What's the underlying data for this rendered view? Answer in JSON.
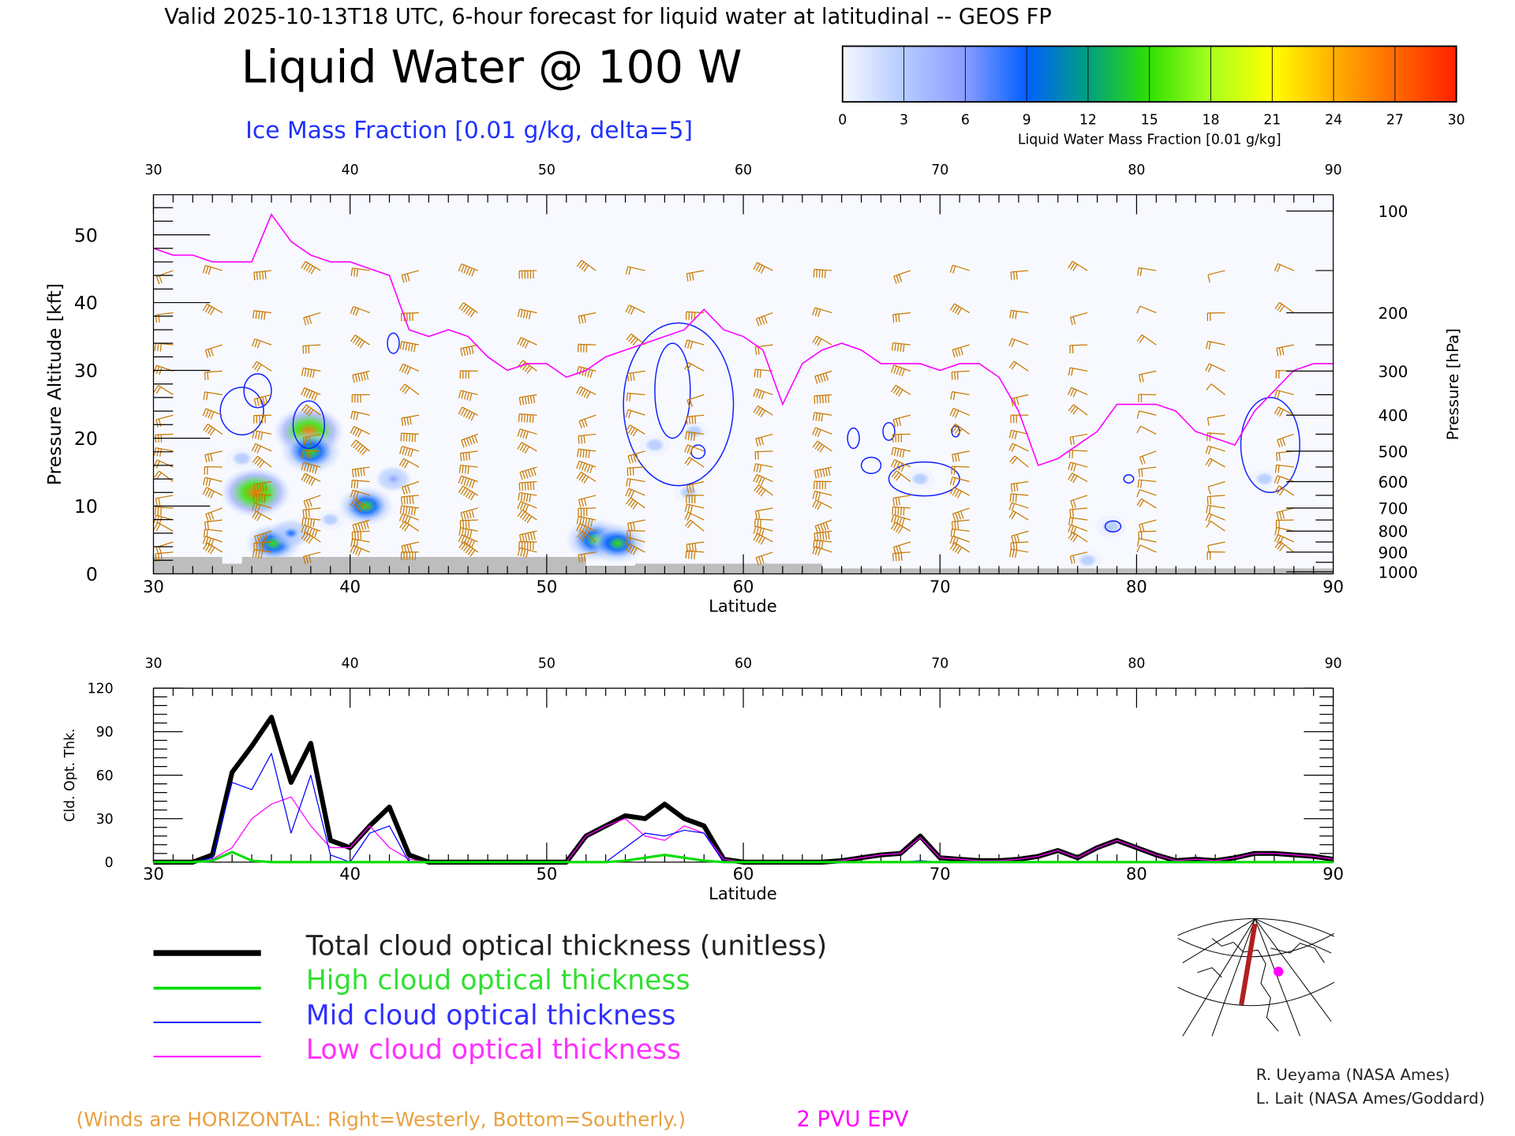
{
  "header": {
    "valid_line": "Valid 2025-10-13T18 UTC, 6-hour forecast for liquid water at latitudinal -- GEOS FP",
    "title": "Liquid Water @ 100 W",
    "ice_label": "Ice Mass Fraction [0.01 g/kg, delta=5]"
  },
  "colorbar": {
    "label": "Liquid Water Mass Fraction [0.01 g/kg]",
    "ticks": [
      "0",
      "3",
      "6",
      "9",
      "12",
      "15",
      "18",
      "21",
      "24",
      "27",
      "30"
    ],
    "colors": [
      "#f4f7ff",
      "#b4cbff",
      "#8a9cff",
      "#0060ff",
      "#00a080",
      "#30e000",
      "#a8ff20",
      "#ffff00",
      "#ffb000",
      "#ff6a00",
      "#ff2000"
    ]
  },
  "footer": {
    "winds_note": "(Winds are HORIZONTAL: Right=Westerly, Bottom=Southerly.)",
    "pv_label": "2 PVU EPV",
    "credit1": "R. Ueyama (NASA Ames)",
    "credit2": "L. Lait (NASA Ames/Goddard)"
  },
  "legend": [
    {
      "label": "Total cloud optical thickness (unitless)",
      "color": "#000000"
    },
    {
      "label": "High cloud optical thickness",
      "color": "#00dd00"
    },
    {
      "label": "Mid cloud optical thickness",
      "color": "#0000ff"
    },
    {
      "label": "Low cloud optical thickness",
      "color": "#ff00ff"
    }
  ],
  "chart_data": [
    {
      "type": "heatmap",
      "title": "Liquid Water @ 100 W",
      "xlabel": "Latitude",
      "ylabel": "Pressure Altitude [kft]",
      "ylabel_right": "Pressure [hPa]",
      "xlim": [
        30,
        90
      ],
      "ylim": [
        0,
        56
      ],
      "xticks": [
        "30",
        "40",
        "50",
        "60",
        "70",
        "80",
        "90"
      ],
      "yticks": [
        "0",
        "10",
        "20",
        "30",
        "40",
        "50"
      ],
      "pressure_ticks": [
        {
          "hPa": "100",
          "kft": 53.5
        },
        {
          "hPa": "200",
          "kft": 38.5
        },
        {
          "hPa": "300",
          "kft": 29.9
        },
        {
          "hPa": "400",
          "kft": 23.4
        },
        {
          "hPa": "500",
          "kft": 18.1
        },
        {
          "hPa": "600",
          "kft": 13.6
        },
        {
          "hPa": "700",
          "kft": 9.7
        },
        {
          "hPa": "800",
          "kft": 6.3
        },
        {
          "hPa": "900",
          "kft": 3.2
        },
        {
          "hPa": "1000",
          "kft": 0.3
        }
      ],
      "liquid_water_blobs": [
        {
          "lat": 35.2,
          "kft": 12,
          "value": 28
        },
        {
          "lat": 34.5,
          "kft": 17,
          "value": 4
        },
        {
          "lat": 36.1,
          "kft": 4.5,
          "value": 14
        },
        {
          "lat": 37,
          "kft": 6,
          "value": 8
        },
        {
          "lat": 37.9,
          "kft": 21,
          "value": 27
        },
        {
          "lat": 38,
          "kft": 18,
          "value": 16
        },
        {
          "lat": 40.8,
          "kft": 10,
          "value": 14
        },
        {
          "lat": 42.2,
          "kft": 14,
          "value": 6
        },
        {
          "lat": 39,
          "kft": 8,
          "value": 3
        },
        {
          "lat": 52.5,
          "kft": 5,
          "value": 16
        },
        {
          "lat": 53.6,
          "kft": 4.5,
          "value": 14
        },
        {
          "lat": 55.5,
          "kft": 19,
          "value": 4
        },
        {
          "lat": 57.2,
          "kft": 12,
          "value": 3
        },
        {
          "lat": 57.5,
          "kft": 21,
          "value": 3
        },
        {
          "lat": 69,
          "kft": 14,
          "value": 3
        },
        {
          "lat": 78.7,
          "kft": 7,
          "value": 4
        },
        {
          "lat": 77.5,
          "kft": 2,
          "value": 3
        },
        {
          "lat": 86.5,
          "kft": 14,
          "value": 3
        }
      ],
      "ice_contours": [
        {
          "lat": 34.5,
          "kft": 24,
          "rx": 1.1,
          "ry": 3.5
        },
        {
          "lat": 35.3,
          "kft": 27,
          "rx": 0.7,
          "ry": 2.5
        },
        {
          "lat": 37.9,
          "kft": 22,
          "rx": 0.8,
          "ry": 3.5
        },
        {
          "lat": 42.2,
          "kft": 34,
          "rx": 0.3,
          "ry": 1.5
        },
        {
          "lat": 56.7,
          "kft": 25,
          "rx": 2.8,
          "ry": 12
        },
        {
          "lat": 56.4,
          "kft": 27,
          "rx": 0.9,
          "ry": 7
        },
        {
          "lat": 57.7,
          "kft": 18,
          "rx": 0.35,
          "ry": 1
        },
        {
          "lat": 65.6,
          "kft": 20,
          "rx": 0.3,
          "ry": 1.5
        },
        {
          "lat": 66.5,
          "kft": 16,
          "rx": 0.5,
          "ry": 1.2
        },
        {
          "lat": 67.4,
          "kft": 21,
          "rx": 0.3,
          "ry": 1.3
        },
        {
          "lat": 69.2,
          "kft": 14,
          "rx": 1.8,
          "ry": 2.5
        },
        {
          "lat": 70.8,
          "kft": 21,
          "rx": 0.2,
          "ry": 0.8
        },
        {
          "lat": 79.6,
          "kft": 14,
          "rx": 0.25,
          "ry": 0.6
        },
        {
          "lat": 78.8,
          "kft": 7,
          "rx": 0.4,
          "ry": 0.8
        },
        {
          "lat": 86.8,
          "kft": 19,
          "rx": 1.5,
          "ry": 7
        }
      ],
      "epv_2pvu_kft": [
        48,
        47,
        47,
        46,
        46,
        46,
        53,
        49,
        47,
        46,
        46,
        45,
        44,
        36,
        35,
        36,
        35,
        32,
        30,
        31,
        31,
        29,
        30,
        32,
        33,
        34,
        35,
        36,
        39,
        36,
        35,
        33,
        25,
        31,
        33,
        34,
        33,
        31,
        31,
        31,
        30,
        31,
        31,
        29,
        24,
        16,
        17,
        19,
        21,
        25,
        25,
        25,
        24,
        21,
        20,
        19,
        24,
        27,
        30,
        31,
        31
      ],
      "terrain_kft": [
        [
          30,
          2.5
        ],
        [
          33.5,
          2.5
        ],
        [
          33.5,
          1.5
        ],
        [
          34.5,
          1.5
        ],
        [
          34.5,
          2.5
        ],
        [
          52,
          2.5
        ],
        [
          52,
          1.2
        ],
        [
          54.5,
          1.2
        ],
        [
          54.5,
          1.5
        ],
        [
          64,
          1.5
        ],
        [
          64,
          0.8
        ],
        [
          90,
          0.8
        ]
      ],
      "winds": {
        "lats": [
          31,
          33.5,
          36,
          38.5,
          41,
          43.5,
          46.5,
          49.5,
          52.5,
          55,
          58,
          61.5,
          64.5,
          68.5,
          71.5,
          74.5,
          77.5,
          81,
          84.5,
          88
        ],
        "pressure_levels_hPa": [
          150,
          200,
          250,
          300,
          350,
          400,
          450,
          500,
          550,
          600,
          650,
          700,
          750,
          800,
          850,
          900
        ],
        "speed_kt": [
          30,
          40,
          55,
          60,
          60,
          60,
          70,
          75,
          60,
          40,
          40,
          45,
          60,
          55,
          40,
          35,
          30,
          25,
          25,
          30
        ]
      }
    },
    {
      "type": "line",
      "xlabel": "Latitude",
      "ylabel": "Cld. Opt. Thk.",
      "xlim": [
        30,
        90
      ],
      "ylim": [
        0,
        120
      ],
      "xticks": [
        "30",
        "40",
        "50",
        "60",
        "70",
        "80",
        "90"
      ],
      "yticks": [
        "0",
        "30",
        "60",
        "90",
        "120"
      ],
      "x": [
        30,
        31,
        32,
        33,
        34,
        35,
        36,
        37,
        38,
        39,
        40,
        41,
        42,
        43,
        44,
        45,
        46,
        47,
        48,
        49,
        50,
        51,
        52,
        53,
        54,
        55,
        56,
        57,
        58,
        59,
        60,
        61,
        62,
        63,
        64,
        65,
        66,
        67,
        68,
        69,
        70,
        71,
        72,
        73,
        74,
        75,
        76,
        77,
        78,
        79,
        80,
        81,
        82,
        83,
        84,
        85,
        86,
        87,
        88,
        89,
        90
      ],
      "series": [
        {
          "name": "Total",
          "values": [
            0,
            0,
            0,
            5,
            62,
            80,
            100,
            55,
            82,
            15,
            10,
            25,
            38,
            5,
            0,
            0,
            0,
            0,
            0,
            0,
            0,
            0,
            18,
            25,
            32,
            30,
            40,
            30,
            25,
            2,
            0,
            0,
            0,
            0,
            0,
            1,
            3,
            5,
            6,
            18,
            3,
            2,
            1,
            1,
            2,
            4,
            8,
            3,
            10,
            15,
            10,
            5,
            1,
            2,
            1,
            3,
            6,
            6,
            5,
            4,
            2
          ]
        },
        {
          "name": "High",
          "values": [
            0,
            0,
            0,
            1,
            7,
            1,
            0,
            0,
            0,
            0,
            0,
            0,
            0,
            0,
            0,
            0,
            0,
            0,
            0,
            0,
            0,
            0,
            0,
            0,
            1,
            3,
            5,
            3,
            1,
            0,
            0,
            0,
            0,
            0,
            0,
            0,
            0,
            0,
            0,
            0,
            0,
            0,
            0,
            0,
            0,
            0,
            0,
            0,
            0,
            0,
            0,
            0,
            0,
            0,
            0,
            0,
            0,
            0,
            0,
            0,
            0
          ]
        },
        {
          "name": "Mid",
          "values": [
            0,
            0,
            0,
            3,
            55,
            50,
            75,
            20,
            60,
            5,
            0,
            20,
            25,
            0,
            0,
            0,
            0,
            0,
            0,
            0,
            0,
            0,
            0,
            0,
            10,
            20,
            18,
            22,
            20,
            0,
            0,
            0,
            0,
            0,
            0,
            0,
            0,
            0,
            0,
            1,
            0,
            0,
            0,
            0,
            0,
            0,
            0,
            0,
            0,
            0,
            0,
            0,
            0,
            0,
            0,
            0,
            0,
            0,
            0,
            0,
            0
          ]
        },
        {
          "name": "Low",
          "values": [
            0,
            0,
            0,
            2,
            10,
            30,
            40,
            45,
            25,
            10,
            10,
            25,
            10,
            2,
            0,
            0,
            0,
            0,
            0,
            0,
            0,
            0,
            18,
            25,
            30,
            18,
            15,
            25,
            20,
            2,
            0,
            0,
            0,
            0,
            0,
            1,
            3,
            5,
            6,
            17,
            3,
            2,
            1,
            1,
            2,
            4,
            8,
            3,
            10,
            15,
            10,
            5,
            1,
            2,
            1,
            3,
            6,
            6,
            5,
            4,
            2
          ]
        }
      ]
    }
  ]
}
